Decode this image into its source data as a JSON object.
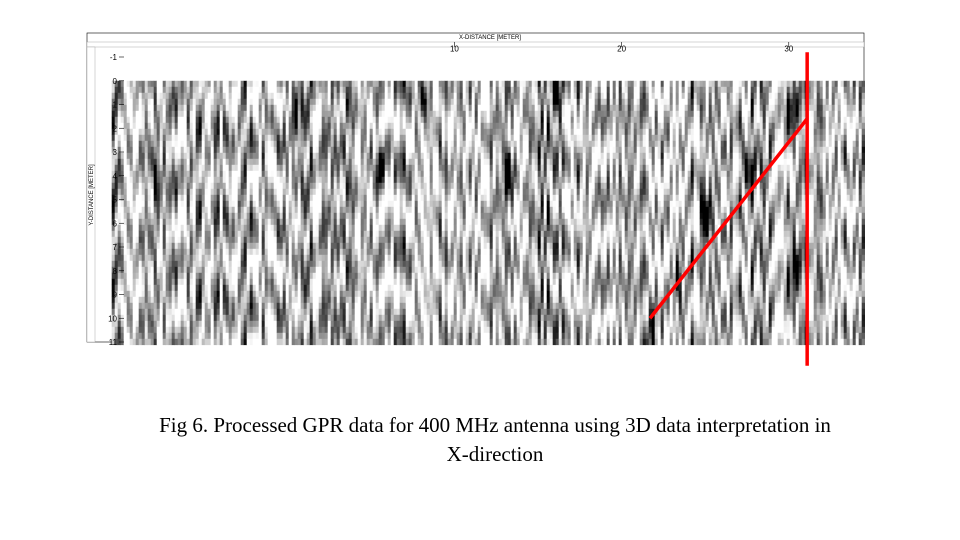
{
  "chart_data": {
    "type": "heatmap",
    "xlabel": "X-DISTANCE [METER]",
    "ylabel": "Y-DISTANCE [METER]",
    "xlim": [
      -11.5,
      34.5
    ],
    "ylim": [
      -1,
      11
    ],
    "x_ticks": [
      10,
      20,
      30
    ],
    "y_ticks": [
      -1,
      0,
      1,
      2,
      3,
      4,
      5,
      6,
      7,
      8,
      9,
      10,
      11
    ],
    "data_x_range": [
      -10.5,
      34.5
    ],
    "data_y_range": [
      0,
      11
    ],
    "colormap": "grayscale",
    "anomalies": [
      {
        "x": 21.8,
        "y": 10.6,
        "strength": 0.95
      },
      {
        "x": 23.4,
        "y": 8.4,
        "strength": 0.9
      },
      {
        "x": 25.0,
        "y": 5.8,
        "strength": 1.0
      },
      {
        "x": 27.6,
        "y": 3.9,
        "strength": 0.95
      },
      {
        "x": 30.2,
        "y": 1.0,
        "strength": 0.95
      },
      {
        "x": 30.3,
        "y": 7.8,
        "strength": 1.0
      },
      {
        "x": 0.5,
        "y": 1.8,
        "strength": 0.7
      },
      {
        "x": 8.2,
        "y": 0.8,
        "strength": 0.8
      },
      {
        "x": 13.2,
        "y": 4.0,
        "strength": 0.75
      },
      {
        "x": 16.1,
        "y": 0.6,
        "strength": 0.75
      },
      {
        "x": 5.6,
        "y": 3.6,
        "strength": 0.6
      },
      {
        "x": -7.7,
        "y": 4.2,
        "strength": 0.6
      }
    ],
    "interpretation_lines": [
      {
        "color": "#ff0000",
        "points": [
          [
            21.7,
            10.0
          ],
          [
            31.1,
            1.6
          ]
        ]
      },
      {
        "color": "#ff0000",
        "points": [
          [
            31.1,
            -1.2
          ],
          [
            31.1,
            12.0
          ]
        ]
      }
    ]
  },
  "caption": {
    "line1": "Fig 6. Processed GPR data for 400 MHz antenna using 3D data interpretation in",
    "line2": "X-direction"
  }
}
